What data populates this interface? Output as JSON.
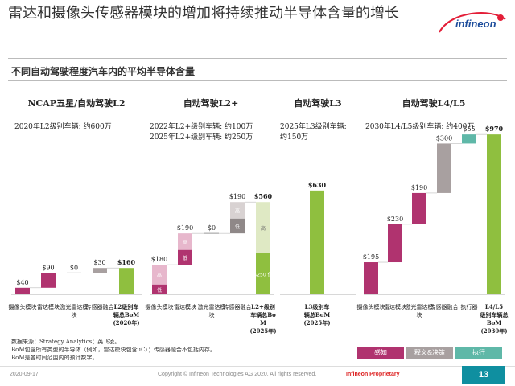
{
  "header": {
    "title": "雷达和摄像头传感器模块的增加将持续推动半导体含量的增长",
    "logo_text": "infineon"
  },
  "subtitle": "不同自动驾驶程度汽车内的平均半导体含量",
  "sections": [
    {
      "title": "NCAP五星/自动驾驶L2",
      "info": [
        "2020年L2级别车辆: 约600万"
      ]
    },
    {
      "title": "自动驾驶L2+",
      "info": [
        "2022年L2+级别车辆: 约100万",
        "2025年L2+级别车辆: 约250万"
      ]
    },
    {
      "title": "自动驾驶L3",
      "info": [
        "2025年L3级别车辆:",
        "约150万"
      ]
    },
    {
      "title": "自动驾驶L4/L5",
      "info": [
        "2030年L4/L5级别车辆: 约400万"
      ]
    }
  ],
  "chart_data": [
    {
      "type": "bar",
      "title": "NCAP五星/自动驾驶L2",
      "categories": [
        "摄像头模块",
        "雷达模块",
        "激光雷达模块",
        "传感器融合",
        "L2级别车辆总BoM (2020年)"
      ],
      "values": [
        40,
        90,
        0,
        30,
        160
      ],
      "labels": [
        "$40",
        "$90",
        "$0",
        "$30",
        "$160"
      ],
      "colors": [
        "#b0336f",
        "#b0336f",
        "#b0336f",
        "#a8a0a0",
        "#8fbf3f"
      ]
    },
    {
      "type": "bar",
      "title": "自动驾驶L2+",
      "categories": [
        "摄像头模块",
        "雷达模块",
        "激光雷达模块",
        "传感器融合",
        "L2+级别车辆总BoM (2025年)"
      ],
      "values": [
        180,
        190,
        0,
        190,
        560
      ],
      "labels": [
        "$180",
        "$190",
        "$0",
        "$190",
        "$560"
      ],
      "splits": [
        {
          "low": 60,
          "high": 120,
          "low_label": "低",
          "high_label": "高"
        },
        {
          "low": 90,
          "high": 100,
          "low_label": "低",
          "high_label": "高"
        },
        null,
        {
          "low": 90,
          "high": 100,
          "low_label": "低",
          "high_label": "高"
        },
        {
          "low": 250,
          "high": 310,
          "low_label": "$250 低",
          "high_label": "高"
        }
      ]
    },
    {
      "type": "bar",
      "title": "自动驾驶L3",
      "categories": [
        "L3级别车辆总BoM (2025年)"
      ],
      "values": [
        630
      ],
      "labels": [
        "$630"
      ],
      "colors": [
        "#8fbf3f"
      ]
    },
    {
      "type": "bar",
      "title": "自动驾驶L4/L5",
      "categories": [
        "摄像头模块",
        "雷达模块",
        "激光雷达模块",
        "传感器融合",
        "执行器",
        "L4/L5级别车辆总BoM (2030年)"
      ],
      "values": [
        195,
        230,
        190,
        300,
        55,
        970
      ],
      "labels": [
        "$195",
        "$230",
        "$190",
        "$300",
        "$55",
        "$970"
      ],
      "colors": [
        "#b0336f",
        "#b0336f",
        "#b0336f",
        "#a8a0a0",
        "#5fb8a8",
        "#8fbf3f"
      ]
    }
  ],
  "legend": [
    {
      "label": "感知",
      "color": "#b0336f"
    },
    {
      "label": "释义&决策",
      "color": "#a8a0a0"
    },
    {
      "label": "执行",
      "color": "#5fb8a8"
    }
  ],
  "source_note": [
    "数据来源：Strategy Analytics；英飞凌。",
    "BoM包含所有类型的半导体（例如，雷达模块包含μC）；传感器融合不包括内存。",
    "BoM是各时间范围内的预计数字。"
  ],
  "footer": {
    "date": "2020-09-17",
    "copyright": "Copyright © Infineon Technologies AG 2020. All rights reserved.",
    "proprietary": "Infineon Proprietary",
    "page": "13"
  }
}
